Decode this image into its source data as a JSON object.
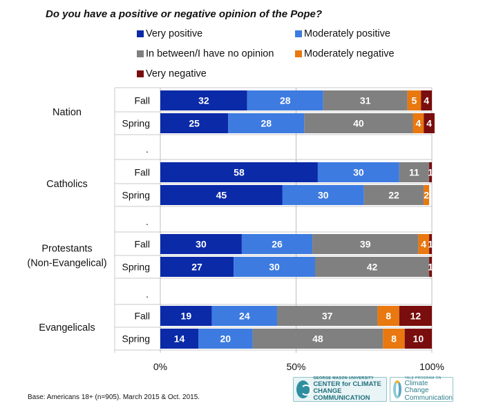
{
  "title": "Do you have a positive or negative opinion of the Pope?",
  "legend": [
    {
      "label": "Very positive",
      "color": "#0b2aa8"
    },
    {
      "label": "Moderately positive",
      "color": "#3d7be0"
    },
    {
      "label": "In between/I have no opinion",
      "color": "#808080"
    },
    {
      "label": "Moderately negative",
      "color": "#e8780f"
    },
    {
      "label": "Very negative",
      "color": "#7a0d0d"
    }
  ],
  "chart_data": {
    "type": "bar",
    "orientation": "horizontal",
    "stacked": true,
    "groups": [
      "Nation",
      "Catholics",
      "Protestants\n(Non-Evangelical)",
      "Evangelicals"
    ],
    "bars": [
      {
        "group": "Nation",
        "label": "Fall",
        "values": [
          32,
          28,
          31,
          5,
          4
        ]
      },
      {
        "group": "Nation",
        "label": "Spring",
        "values": [
          25,
          28,
          40,
          4,
          4
        ]
      },
      {
        "group": "Catholics",
        "label": "Fall",
        "values": [
          58,
          30,
          11,
          0,
          1
        ]
      },
      {
        "group": "Catholics",
        "label": "Spring",
        "values": [
          45,
          30,
          22,
          2,
          0
        ]
      },
      {
        "group": "Protestants\n(Non-Evangelical)",
        "label": "Fall",
        "values": [
          30,
          26,
          39,
          4,
          1
        ]
      },
      {
        "group": "Protestants\n(Non-Evangelical)",
        "label": "Spring",
        "values": [
          27,
          30,
          42,
          0,
          1
        ]
      },
      {
        "group": "Evangelicals",
        "label": "Fall",
        "values": [
          19,
          24,
          37,
          8,
          12
        ]
      },
      {
        "group": "Evangelicals",
        "label": "Spring",
        "values": [
          14,
          20,
          48,
          8,
          10
        ]
      }
    ],
    "series": [
      {
        "name": "Very positive"
      },
      {
        "name": "Moderately positive"
      },
      {
        "name": "In between/I have no opinion"
      },
      {
        "name": "Moderately negative"
      },
      {
        "name": "Very negative"
      }
    ],
    "separator_label": ".",
    "x_ticks": [
      "0%",
      "50%",
      "100%"
    ],
    "xlim": [
      0,
      100
    ],
    "grid": true,
    "legend_position": "top"
  },
  "footnote": "Base: Americans 18+ (n=905). March  2015 & Oct. 2015.",
  "logos": {
    "gmu": {
      "line1": "GEORGE MASON UNIVERSITY",
      "line2": "CENTER for CLIMATE CHANGE",
      "line3": "COMMUNICATION"
    },
    "yale": {
      "line1": "YALE PROGRAM ON",
      "line2": "Climate Change",
      "line3": "Communication"
    }
  }
}
